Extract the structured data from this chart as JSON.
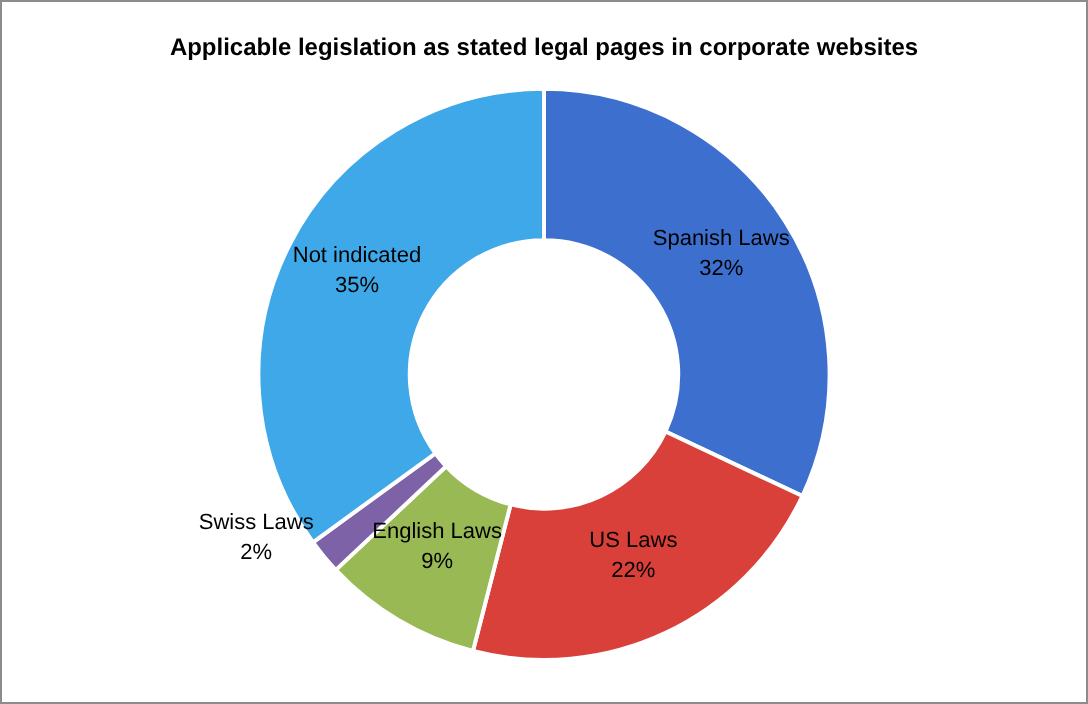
{
  "chart_data": {
    "type": "donut",
    "title": "Applicable legislation as stated legal pages in corporate websites",
    "categories": [
      "Spanish Laws",
      "US Laws",
      "English Laws",
      "Swiss Laws",
      "Not indicated"
    ],
    "values": [
      32,
      22,
      9,
      2,
      35
    ],
    "value_labels": [
      "32%",
      "22%",
      "9%",
      "2%",
      "35%"
    ],
    "colors": [
      "#3d6fcf",
      "#d9403a",
      "#98b954",
      "#7d62a8",
      "#3fa8e8"
    ],
    "legend": false
  }
}
